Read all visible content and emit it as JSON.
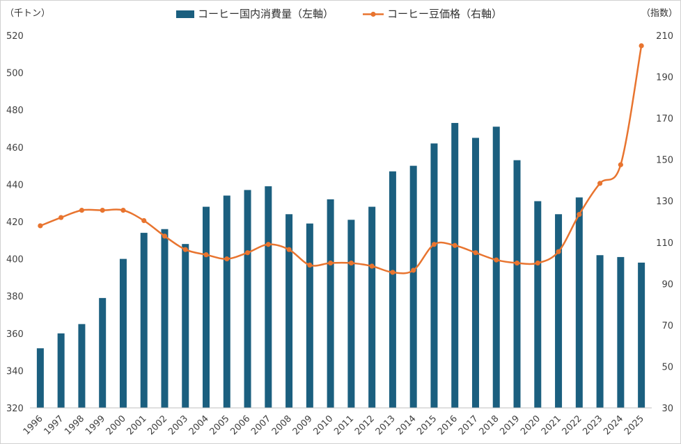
{
  "chart_data": {
    "type": "bar",
    "title": "",
    "left_unit": "（千トン）",
    "right_unit": "（指数）",
    "categories": [
      "1996",
      "1997",
      "1998",
      "1999",
      "2000",
      "2001",
      "2002",
      "2003",
      "2004",
      "2005",
      "2006",
      "2007",
      "2008",
      "2009",
      "2010",
      "2011",
      "2012",
      "2013",
      "2014",
      "2015",
      "2016",
      "2017",
      "2018",
      "2019",
      "2020",
      "2021",
      "2022",
      "2023",
      "2024",
      "2025"
    ],
    "series": [
      {
        "name": "コーヒー国内消費量（左軸）",
        "kind": "bar",
        "axis": "left",
        "color": "#1b5f7f",
        "values": [
          352,
          360,
          365,
          379,
          400,
          414,
          416,
          408,
          428,
          434,
          437,
          439,
          424,
          419,
          432,
          421,
          428,
          447,
          450,
          462,
          473,
          465,
          471,
          453,
          431,
          424,
          433,
          402,
          401,
          398
        ]
      },
      {
        "name": "コーヒー豆価格（右軸）",
        "kind": "line",
        "axis": "right",
        "color": "#e8742f",
        "values": [
          118,
          122,
          125.5,
          125.5,
          125.5,
          120.5,
          113,
          106.5,
          104,
          102,
          105,
          109,
          106.5,
          99,
          100,
          100,
          98.5,
          95.5,
          96.5,
          109,
          108.5,
          105,
          101.5,
          100,
          100,
          105.5,
          123.5,
          138.5,
          147.5,
          205
        ]
      }
    ],
    "ylim_left": [
      320,
      520
    ],
    "yticks_left": [
      "320",
      "340",
      "360",
      "380",
      "400",
      "420",
      "440",
      "460",
      "480",
      "500",
      "520"
    ],
    "ylim_right": [
      30,
      210
    ],
    "yticks_right": [
      "30",
      "50",
      "70",
      "90",
      "110",
      "130",
      "150",
      "170",
      "190",
      "210"
    ],
    "grid": false,
    "legend_position": "top-center"
  }
}
